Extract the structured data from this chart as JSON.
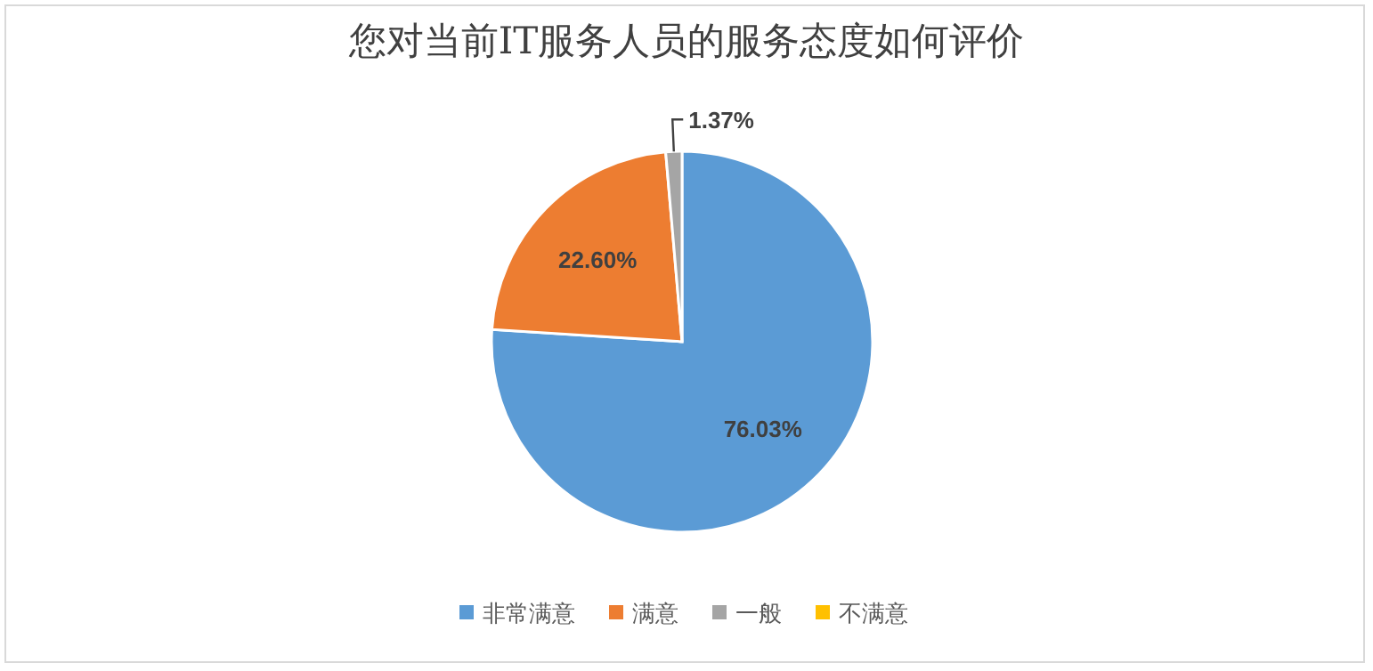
{
  "chart_data": {
    "type": "pie",
    "title": "您对当前IT服务人员的服务态度如何评价",
    "categories": [
      "非常满意",
      "满意",
      "一般",
      "不满意"
    ],
    "values": [
      76.03,
      22.6,
      1.37,
      0
    ],
    "colors": [
      "#5b9bd5",
      "#ed7d31",
      "#a5a5a5",
      "#ffc000"
    ],
    "value_labels": [
      "76.03%",
      "22.60%",
      "1.37%",
      null
    ],
    "legend": "bottom"
  }
}
